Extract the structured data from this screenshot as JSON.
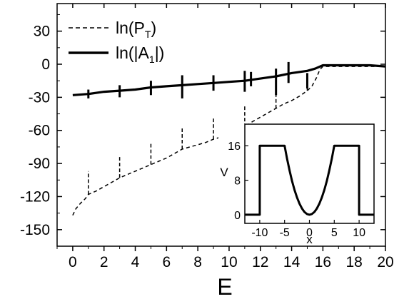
{
  "chart_data": [
    {
      "type": "line",
      "xlabel": "E",
      "ylabel": "",
      "xlim": [
        -1,
        20
      ],
      "ylim": [
        -165,
        55
      ],
      "x_ticks": [
        "0",
        "2",
        "4",
        "6",
        "8",
        "10",
        "12",
        "14",
        "16",
        "18",
        "20"
      ],
      "y_ticks": [
        "30",
        "0",
        "-30",
        "-60",
        "-90",
        "-120",
        "-150"
      ],
      "legend": {
        "position": "top-left"
      },
      "series": [
        {
          "name": "ln(P_T)",
          "name_main": "ln(P",
          "name_sub": "T",
          "name_end": ")",
          "style": "dashed",
          "color": "#000000",
          "x": [
            0,
            0.2,
            0.5,
            0.8,
            1.0,
            1.5,
            2.0,
            2.5,
            3.0,
            3.5,
            4.0,
            4.5,
            5.0,
            5.5,
            6.0,
            6.5,
            7.0,
            7.5,
            8.0,
            8.5,
            9.0,
            9.5,
            10.0,
            10.5,
            11.0,
            11.5,
            12.0,
            12.5,
            13.0,
            13.5,
            14.0,
            14.5,
            15.0,
            15.3,
            15.6,
            15.8,
            16.0,
            17,
            18,
            19,
            20
          ],
          "y": [
            -137,
            -131,
            -126,
            -122,
            -118,
            -115,
            -111,
            -107,
            -103,
            -100,
            -97,
            -94,
            -91,
            -88,
            -85,
            -81,
            -77,
            -75,
            -73,
            -71,
            -68,
            -66,
            -63,
            -60,
            -57,
            -52,
            -48,
            -44,
            -40,
            -36,
            -33,
            -29,
            -24,
            -20,
            -12,
            -5,
            -2,
            -2,
            -2,
            -2,
            -2
          ],
          "spikes": [
            {
              "x": 1.0,
              "from": -118,
              "to": -97
            },
            {
              "x": 3.0,
              "from": -103,
              "to": -83
            },
            {
              "x": 5.0,
              "from": -91,
              "to": -72
            },
            {
              "x": 7.0,
              "from": -77,
              "to": -57
            },
            {
              "x": 9.0,
              "from": -68,
              "to": -48
            },
            {
              "x": 11.0,
              "from": -57,
              "to": -38
            },
            {
              "x": 13.0,
              "from": -40,
              "to": -23
            },
            {
              "x": 15.0,
              "from": -24,
              "to": -12
            }
          ]
        },
        {
          "name": "ln(|A_1|)",
          "name_main": "ln(|A",
          "name_sub": "1",
          "name_end": "|)",
          "style": "solid",
          "color": "#000000",
          "x": [
            0,
            1,
            2,
            3,
            4,
            5,
            6,
            7,
            8,
            9,
            10,
            11,
            12,
            13,
            14,
            15,
            15.5,
            16,
            17,
            18,
            19,
            20
          ],
          "y": [
            -28,
            -27,
            -25,
            -24,
            -23,
            -21,
            -20,
            -19,
            -18,
            -17,
            -16,
            -15,
            -13,
            -11,
            -8,
            -6,
            -4,
            -1,
            -1,
            -1,
            -1,
            -2
          ],
          "spikes": [
            {
              "x": 1.0,
              "from": -31,
              "to": -23
            },
            {
              "x": 3.0,
              "from": -30,
              "to": -19
            },
            {
              "x": 5.0,
              "from": -28,
              "to": -15
            },
            {
              "x": 7.0,
              "from": -31,
              "to": -10
            },
            {
              "x": 9.0,
              "from": -24,
              "to": -10
            },
            {
              "x": 11.0,
              "from": -25,
              "to": -6
            },
            {
              "x": 11.4,
              "from": -20,
              "to": -7
            },
            {
              "x": 13.0,
              "from": -28,
              "to": -4
            },
            {
              "x": 13.8,
              "from": -17,
              "to": 2
            },
            {
              "x": 15.0,
              "from": -22,
              "to": -8
            }
          ]
        }
      ]
    },
    {
      "type": "line",
      "role": "inset",
      "xlabel": "x",
      "ylabel": "V",
      "xlim": [
        -13,
        13
      ],
      "ylim": [
        -2,
        21
      ],
      "x_ticks": [
        "-10",
        "-5",
        "0",
        "5",
        "10"
      ],
      "y_ticks": [
        "16",
        "8",
        "0"
      ],
      "series": [
        {
          "style": "solid",
          "color": "#000000",
          "x": [
            -13,
            -10,
            -10,
            -5,
            -4.5,
            -4,
            -3.5,
            -3,
            -2.5,
            -2,
            -1.5,
            -1,
            -0.5,
            0,
            0.5,
            1,
            1.5,
            2,
            2.5,
            3,
            3.5,
            4,
            4.5,
            5,
            10,
            10,
            13
          ],
          "y": [
            0,
            0,
            16,
            16,
            12.96,
            10.24,
            7.84,
            5.76,
            4,
            2.56,
            1.44,
            0.64,
            0.16,
            0,
            0.16,
            0.64,
            1.44,
            2.56,
            4,
            5.76,
            7.84,
            10.24,
            12.96,
            16,
            16,
            0,
            0
          ]
        }
      ]
    }
  ]
}
